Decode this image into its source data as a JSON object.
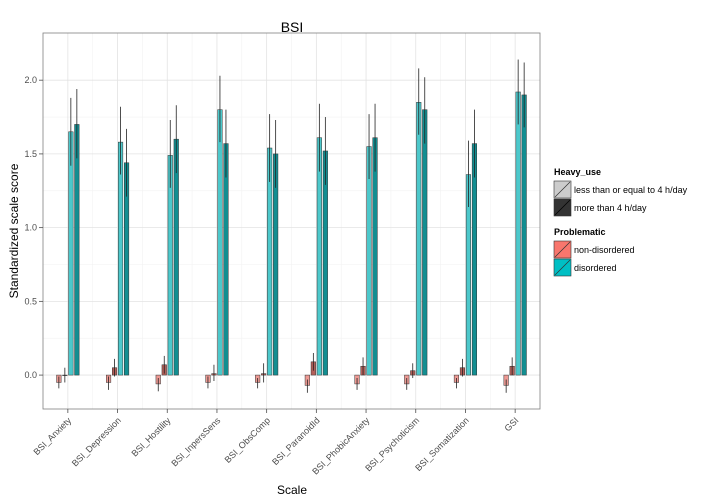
{
  "chart_data": {
    "type": "bar",
    "title": "BSI",
    "xlabel": "Scale",
    "ylabel": "Standardized scale score",
    "ylim": [
      -0.23,
      2.32
    ],
    "yticks": [
      "0.0",
      "0.5",
      "1.0",
      "1.5",
      "2.0"
    ],
    "ytick_values": [
      0.0,
      0.5,
      1.0,
      1.5,
      2.0
    ],
    "grid": true,
    "legend_position": "right",
    "categories": [
      "BSI_Anxiety",
      "BSI_Depression",
      "BSI_Hostility",
      "BSI_InpersSens",
      "BSI_ObsComp",
      "BSI_ParanoidId",
      "BSI_PhobicAnxiety",
      "BSI_Psychoticism",
      "BSI_Somatization",
      "GSI"
    ],
    "series": [
      {
        "problematic": "non-disordered",
        "heavy_use": "less than or equal to 4 h/day",
        "values": [
          -0.05,
          -0.05,
          -0.06,
          -0.05,
          -0.05,
          -0.07,
          -0.06,
          -0.06,
          -0.05,
          -0.07
        ],
        "err_low": [
          -0.09,
          -0.1,
          -0.11,
          -0.09,
          -0.09,
          -0.12,
          -0.1,
          -0.1,
          -0.09,
          -0.12
        ],
        "err_high": [
          -0.01,
          -0.01,
          -0.02,
          -0.01,
          -0.02,
          -0.03,
          -0.02,
          -0.02,
          -0.02,
          -0.03
        ]
      },
      {
        "problematic": "non-disordered",
        "heavy_use": "more than 4 h/day",
        "values": [
          0.0,
          0.05,
          0.07,
          0.01,
          0.01,
          0.09,
          0.06,
          0.03,
          0.05,
          0.06
        ],
        "err_low": [
          -0.05,
          -0.01,
          0.01,
          -0.04,
          -0.05,
          0.03,
          0.0,
          -0.02,
          -0.01,
          0.0
        ],
        "err_high": [
          0.05,
          0.11,
          0.13,
          0.07,
          0.08,
          0.15,
          0.12,
          0.08,
          0.11,
          0.12
        ]
      },
      {
        "problematic": "disordered",
        "heavy_use": "less than or equal to 4 h/day",
        "values": [
          1.65,
          1.58,
          1.49,
          1.8,
          1.54,
          1.61,
          1.55,
          1.85,
          1.36,
          1.92
        ],
        "err_low": [
          1.42,
          1.36,
          1.27,
          1.58,
          1.31,
          1.38,
          1.33,
          1.63,
          1.14,
          1.7
        ],
        "err_high": [
          1.88,
          1.82,
          1.73,
          2.03,
          1.77,
          1.84,
          1.77,
          2.08,
          1.59,
          2.14
        ]
      },
      {
        "problematic": "disordered",
        "heavy_use": "more than 4 h/day",
        "values": [
          1.7,
          1.44,
          1.6,
          1.57,
          1.5,
          1.52,
          1.61,
          1.8,
          1.57,
          1.9
        ],
        "err_low": [
          1.47,
          1.21,
          1.37,
          1.34,
          1.27,
          1.29,
          1.38,
          1.57,
          1.34,
          1.68
        ],
        "err_high": [
          1.94,
          1.67,
          1.83,
          1.8,
          1.73,
          1.75,
          1.84,
          2.02,
          1.8,
          2.12
        ]
      }
    ],
    "legends": [
      {
        "title": "Heavy_use",
        "items": [
          "less than or equal to 4 h/day",
          "more than 4 h/day"
        ]
      },
      {
        "title": "Problematic",
        "items": [
          "non-disordered",
          "disordered"
        ]
      }
    ],
    "colors": {
      "non_disordered": "#F8766D",
      "disordered": "#00BFC4",
      "light_use_shade": "#d9d9d9",
      "heavy_use_shade": "#333333",
      "panel_background": "#ffffff",
      "grid_major": "#e3e3e3",
      "grid_minor": "#f2f2f2",
      "panel_border": "#7f7f7f"
    }
  }
}
